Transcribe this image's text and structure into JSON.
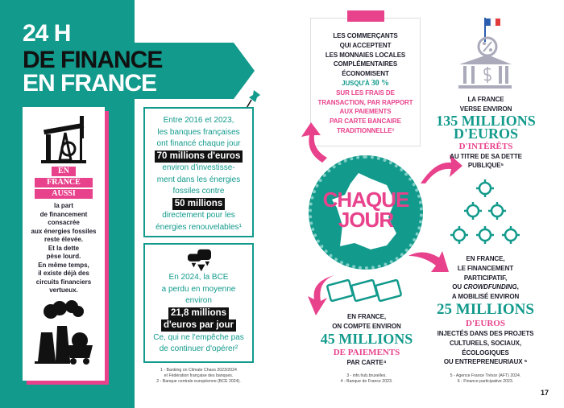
{
  "title": {
    "line1": "24 H",
    "line2": "DE FINANCE",
    "line3": "EN FRANCE"
  },
  "left_card": {
    "tags": [
      "EN",
      "FRANCE",
      "AUSSI"
    ],
    "text": [
      "la part",
      "de financement",
      "consacrée",
      "aux énergies fossiles",
      "reste élevée.",
      "Et la dette",
      "pèse lourd.",
      "En même temps,",
      "il existe déjà des",
      "circuits financiers",
      "vertueux."
    ]
  },
  "box_banks": {
    "l1": "Entre 2016 et 2023,",
    "l2": "les banques françaises",
    "l3": "ont financé chaque jour",
    "h1": "70 millions d'euros",
    "l4": "environ d'investisse-",
    "l5": "ment dans les énergies",
    "l6": "fossiles contre",
    "h2": "50 millions",
    "l7": "directement pour les",
    "l8": "énergies renouvelables¹"
  },
  "box_bce": {
    "l1": "En 2024, la BCE",
    "l2": "a perdu en moyenne",
    "l3": "environ",
    "h1": "21,8 millions",
    "h2": "d'euros par jour",
    "l4": "Ce, qui ne l'empêche pas",
    "l5": "de continuer d'opérer²"
  },
  "footnotes_left": [
    "1 - Banking on Climate Chaos 2023/2024",
    "et Fédération française des banques.",
    "2 - Banque centrale européenne (BCE 2024)."
  ],
  "commercants": {
    "lines": [
      "LES COMMERÇANTS",
      "QUI ACCEPTENT",
      "LES MONNAIES LOCALES",
      "COMPLÉMENTAIRES",
      "ÉCONOMISENT"
    ],
    "jusqu": "JUSQU'À",
    "pct": "30 %",
    "pink": [
      "SUR LES FRAIS DE",
      "TRANSACTION, PAR RAPPORT",
      "AUX PAIEMENTS",
      "PAR CARTE BANCAIRE",
      "TRADITIONNELLE³"
    ]
  },
  "center": {
    "l1": "CHAQUE",
    "l2": "JOUR"
  },
  "dette": {
    "l1": "LA FRANCE",
    "l2": "VERSE ENVIRON",
    "big1": "135 MILLIONS",
    "big2": "D'EUROS",
    "pink": "D'INTÉRÊTS",
    "l3": "AU TITRE DE SA DETTE",
    "l4": "PUBLIQUE⁵"
  },
  "paiements": {
    "l1": "EN FRANCE,",
    "l2": "ON COMPTE ENVIRON",
    "big": "45 MILLIONS",
    "pink": "DE PAIEMENTS",
    "l3": "PAR CARTE⁴"
  },
  "crowd": {
    "lines": [
      "EN FRANCE,",
      "LE FINANCEMENT",
      "PARTICIPATIF,"
    ],
    "l4a": "OU ",
    "l4b": "CROWDFUNDING",
    "l4c": ",",
    "l5": "A MOBILISÉ ENVIRON",
    "big": "25 MILLIONS",
    "pink": "D'EUROS",
    "tail": [
      "INJECTÉS DANS DES PROJETS",
      "CULTURELS, SOCIAUX,",
      "ÉCOLOGIQUES",
      "OU ENTREPRENEURIAUX ⁶"
    ]
  },
  "footnotes_mid": [
    "3 - info.hub.bruxelles.",
    "4 - Banque de France 2023."
  ],
  "footnotes_right": [
    "5 - Agence France Trésor (AFT) 2024.",
    "6 - Finance participative 2023."
  ],
  "page_number": "17",
  "colors": {
    "teal": "#129a8c",
    "pink": "#e8428c"
  }
}
